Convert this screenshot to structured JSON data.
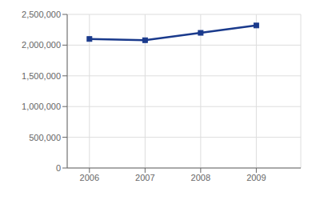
{
  "chart_data": {
    "type": "line",
    "x": [
      2006,
      2007,
      2008,
      2009
    ],
    "values": [
      2100000,
      2080000,
      2200000,
      2320000
    ],
    "color": "#1a3a8c",
    "marker": "square",
    "xlim": [
      2005.6,
      2009.8
    ],
    "xticks": [
      2006,
      2007,
      2008,
      2009
    ],
    "ylim": [
      0,
      2500000
    ],
    "yticks": [
      0,
      {
        "value": 500000,
        "label": "500,000"
      },
      {
        "value": 1000000,
        "label": "1,000,000"
      },
      {
        "value": 1500000,
        "label": "1,500,000"
      },
      {
        "value": 2000000,
        "label": "2,000,000"
      },
      {
        "value": 2500000,
        "label": "2,500,000"
      }
    ],
    "grid": true
  }
}
